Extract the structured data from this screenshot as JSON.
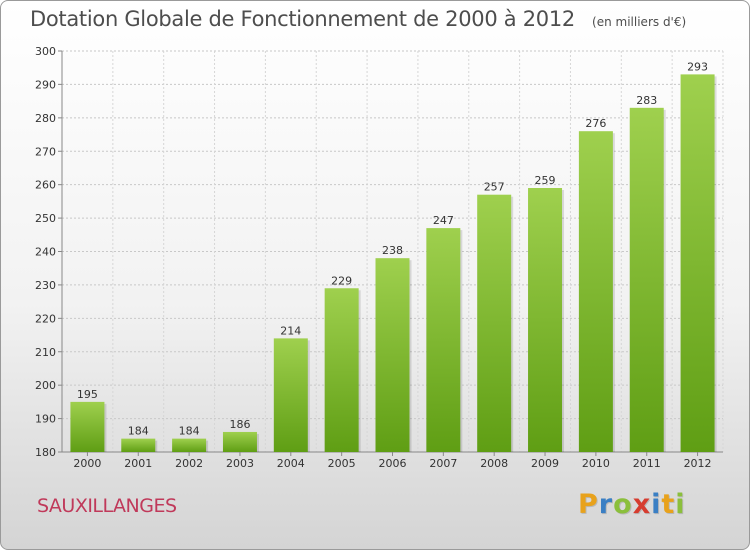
{
  "header": {
    "title": "Dotation Globale de Fonctionnement de 2000 à 2012",
    "unit_note": "(en milliers d'€)"
  },
  "footer": {
    "commune": "SAUXILLANGES",
    "logo_letters": [
      {
        "ch": "P",
        "color": "#e8a21c"
      },
      {
        "ch": "r",
        "color": "#3a7fc4"
      },
      {
        "ch": "o",
        "color": "#8bbf3c"
      },
      {
        "ch": "x",
        "color": "#d63c2f"
      },
      {
        "ch": "i",
        "color": "#3a7fc4"
      },
      {
        "ch": "t",
        "color": "#e8a21c"
      },
      {
        "ch": "i",
        "color": "#8bbf3c"
      }
    ]
  },
  "chart_data": {
    "type": "bar",
    "categories": [
      "2000",
      "2001",
      "2002",
      "2003",
      "2004",
      "2005",
      "2006",
      "2007",
      "2008",
      "2009",
      "2010",
      "2011",
      "2012"
    ],
    "values": [
      195,
      184,
      184,
      186,
      214,
      229,
      238,
      247,
      257,
      259,
      276,
      283,
      293
    ],
    "ylim": [
      180,
      300
    ],
    "yticks": [
      180,
      190,
      200,
      210,
      220,
      230,
      240,
      250,
      260,
      270,
      280,
      290,
      300
    ],
    "grid": true,
    "bar_color_top": "#9fd04e",
    "bar_color_bottom": "#5f9e14"
  }
}
